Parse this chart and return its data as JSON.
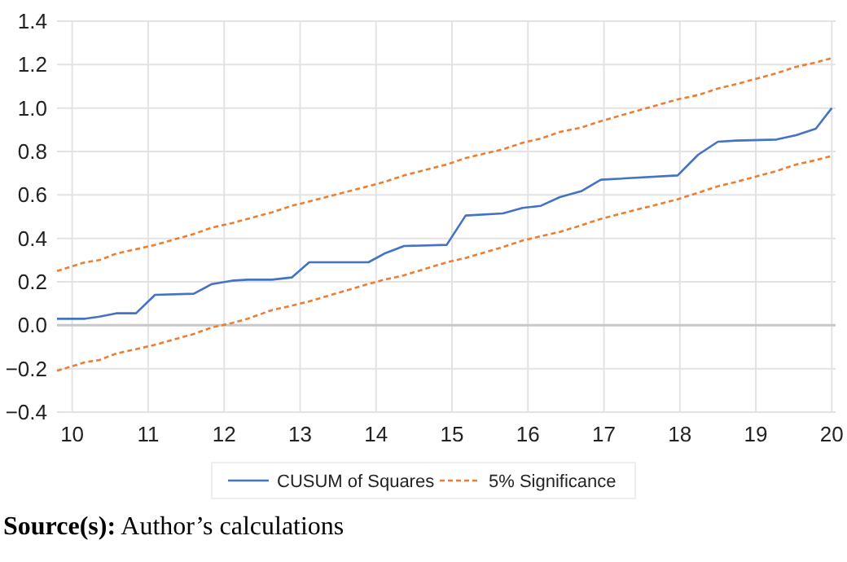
{
  "chart_data": {
    "type": "line",
    "x": [
      9.8,
      10.17,
      10.36,
      10.58,
      10.84,
      11.09,
      11.6,
      11.84,
      12.1,
      12.31,
      12.63,
      12.89,
      13.12,
      13.9,
      14.11,
      14.37,
      14.93,
      15.18,
      15.67,
      15.93,
      16.17,
      16.42,
      16.7,
      16.96,
      17.97,
      18.24,
      18.5,
      18.74,
      19.27,
      19.53,
      19.79,
      20
    ],
    "series": [
      {
        "name": "CUSUM of Squares",
        "color": "#4472c4",
        "line_style": "solid",
        "values": [
          0.03,
          0.03,
          0.04,
          0.055,
          0.055,
          0.14,
          0.145,
          0.19,
          0.205,
          0.21,
          0.21,
          0.22,
          0.29,
          0.29,
          0.33,
          0.365,
          0.37,
          0.505,
          0.515,
          0.54,
          0.55,
          0.59,
          0.617,
          0.67,
          0.69,
          0.785,
          0.845,
          0.85,
          0.855,
          0.875,
          0.905,
          1.0
        ]
      },
      {
        "name": "5% Significance",
        "color": "#ed7d31",
        "line_style": "dashed",
        "values": [
          0.25,
          0.29,
          0.3,
          0.33,
          0.35,
          0.37,
          0.42,
          0.45,
          0.47,
          0.49,
          0.52,
          0.55,
          0.57,
          0.64,
          0.66,
          0.69,
          0.74,
          0.77,
          0.81,
          0.84,
          0.86,
          0.89,
          0.91,
          0.94,
          1.04,
          1.06,
          1.09,
          1.11,
          1.16,
          1.19,
          1.21,
          1.23
        ]
      },
      {
        "color": "#ed7d31",
        "line_style": "dashed",
        "values": [
          -0.21,
          -0.17,
          -0.16,
          -0.13,
          -0.11,
          -0.09,
          -0.04,
          -0.01,
          0.01,
          0.03,
          0.07,
          0.09,
          0.11,
          0.19,
          0.21,
          0.23,
          0.29,
          0.31,
          0.36,
          0.39,
          0.41,
          0.43,
          0.46,
          0.49,
          0.58,
          0.61,
          0.64,
          0.66,
          0.71,
          0.74,
          0.76,
          0.78
        ]
      }
    ],
    "xlim": [
      9.8,
      20.05
    ],
    "xticks": [
      10,
      11,
      12,
      13,
      14,
      15,
      16,
      17,
      18,
      19,
      20
    ],
    "ylim": [
      -0.4,
      1.4
    ],
    "yticks": [
      {
        "value": -0.4,
        "label": "−0.4"
      },
      {
        "value": -0.2,
        "label": "−0.2"
      },
      {
        "value": 0,
        "label": "0.0"
      },
      {
        "value": 0.2,
        "label": "0.2"
      },
      {
        "value": 0.4,
        "label": "0.4"
      },
      {
        "value": 0.6,
        "label": "0.6"
      },
      {
        "value": 0.8,
        "label": "0.8"
      },
      {
        "value": 1.0,
        "label": "1.0"
      },
      {
        "value": 1.2,
        "label": "1.2"
      },
      {
        "value": 1.4,
        "label": "1.4"
      }
    ],
    "grid": true,
    "legend": "bottom",
    "annotations": [
      "Source(s): Author’s calculations"
    ]
  }
}
